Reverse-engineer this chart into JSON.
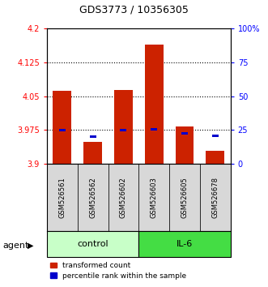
{
  "title": "GDS3773 / 10356305",
  "samples": [
    "GSM526561",
    "GSM526562",
    "GSM526602",
    "GSM526603",
    "GSM526605",
    "GSM526678"
  ],
  "red_values": [
    4.062,
    3.948,
    4.063,
    4.165,
    3.982,
    3.928
  ],
  "blue_values": [
    3.974,
    3.96,
    3.974,
    3.977,
    3.968,
    3.962
  ],
  "y_min": 3.9,
  "y_max": 4.2,
  "y_ticks_red": [
    3.9,
    3.975,
    4.05,
    4.125,
    4.2
  ],
  "y_ticks_blue": [
    0,
    25,
    50,
    75,
    100
  ],
  "control_label": "control",
  "il6_label": "IL-6",
  "agent_label": "agent",
  "legend_red": "transformed count",
  "legend_blue": "percentile rank within the sample",
  "control_color": "#c8ffc8",
  "il6_color": "#44dd44",
  "bar_color_red": "#cc2200",
  "bar_color_blue": "#0000cc",
  "label_bg_color": "#d8d8d8",
  "base_value": 3.9,
  "figsize": [
    3.31,
    3.54
  ],
  "dpi": 100
}
